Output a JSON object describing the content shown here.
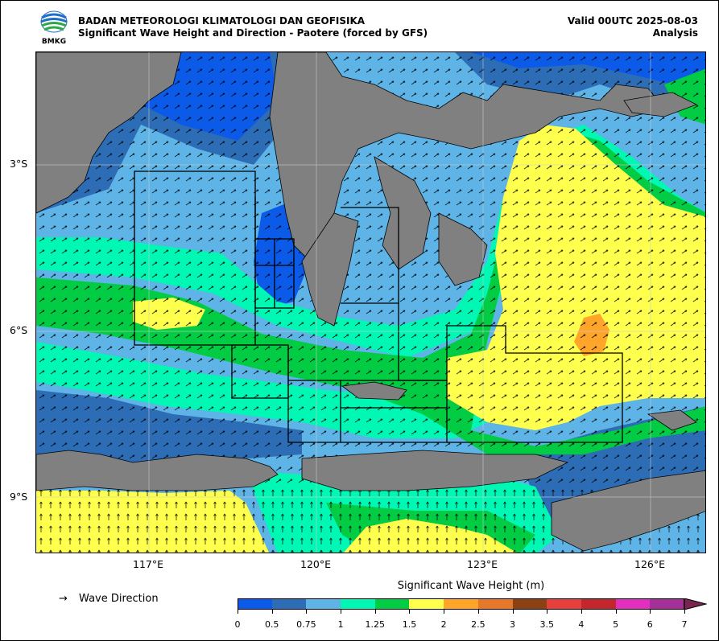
{
  "header": {
    "org": "BADAN METEOROLOGI KLIMATOLOGI DAN GEOFISIKA",
    "subtitle": "Significant Wave Height and Direction - Paotere (forced by GFS)",
    "valid": "Valid 00UTC 2025-08-03",
    "mode": "Analysis",
    "logo_text": "BMKG"
  },
  "map": {
    "lat_labels": [
      "3°S",
      "6°S",
      "9°S"
    ],
    "lon_labels": [
      "117°E",
      "120°E",
      "123°E",
      "126°E"
    ],
    "land_color": "#808080",
    "grid": true
  },
  "legend": {
    "arrow_glyph": "→",
    "arrow_label": "Wave Direction",
    "colorbar_title": "Significant Wave Height (m)",
    "ticks": [
      "0",
      "0.5",
      "0.75",
      "1",
      "1.25",
      "1.5",
      "2",
      "2.5",
      "3",
      "3.5",
      "4",
      "5",
      "6",
      "7"
    ],
    "colors": [
      "#0b5ae8",
      "#2d6db6",
      "#5eb4e6",
      "#01f7b4",
      "#02cc44",
      "#ffff4d",
      "#ffa52a",
      "#e5782a",
      "#8c4113",
      "#e6403c",
      "#c1272d",
      "#e130c0",
      "#a63099",
      "#7a2450"
    ]
  }
}
